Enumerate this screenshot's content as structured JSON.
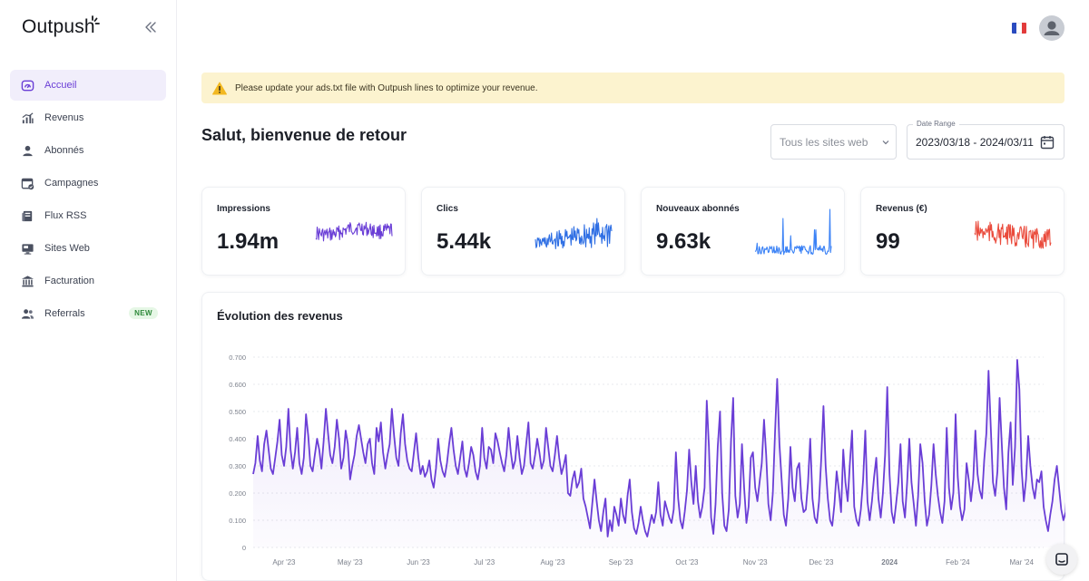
{
  "app": {
    "logo_text": "Outpush",
    "logo_icon": "spark-icon",
    "collapse_icon": "double-chevron-left-icon"
  },
  "sidebar": {
    "items": [
      {
        "label": "Accueil",
        "icon": "dashboard-gauge-icon",
        "active": true
      },
      {
        "label": "Revenus",
        "icon": "bar-chart-icon",
        "active": false
      },
      {
        "label": "Abonnés",
        "icon": "user-icon",
        "active": false
      },
      {
        "label": "Campagnes",
        "icon": "calendar-check-icon",
        "active": false
      },
      {
        "label": "Flux RSS",
        "icon": "rss-feed-icon",
        "active": false
      },
      {
        "label": "Sites Web",
        "icon": "monitor-icon",
        "active": false
      },
      {
        "label": "Facturation",
        "icon": "bank-icon",
        "active": false
      },
      {
        "label": "Referrals",
        "icon": "users-icon",
        "active": false,
        "badge": "NEW"
      }
    ]
  },
  "header": {
    "language_flag": "france-flag-icon",
    "avatar_icon": "avatar-icon"
  },
  "alert": {
    "icon": "warning-triangle-icon",
    "text": "Please update your ads.txt file with Outpush lines to optimize your revenue."
  },
  "greeting": "Salut, bienvenue de retour",
  "filters": {
    "site_select_value": "Tous les sites web",
    "date_range_label": "Date Range",
    "date_range_value": "2023/03/18 - 2024/03/11"
  },
  "colors": {
    "accent": "#6a3ed6",
    "impressions": "#6a3ed6",
    "clics": "#2f6fe4",
    "abonnes": "#3b82f6",
    "revenus": "#ea4b3c",
    "alert_bg": "#fcf3cf"
  },
  "stats": [
    {
      "label": "Impressions",
      "value": "1.94m",
      "color": "#6a3ed6"
    },
    {
      "label": "Clics",
      "value": "5.44k",
      "color": "#2f6fe4"
    },
    {
      "label": "Nouveaux abonnés",
      "value": "9.63k",
      "color": "#3b82f6"
    },
    {
      "label": "Revenus (€)",
      "value": "99",
      "color": "#ea4b3c"
    }
  ],
  "chart_data": {
    "type": "area",
    "title": "Évolution des revenus",
    "x_tick_labels": [
      "Apr '23",
      "May '23",
      "Jun '23",
      "Jul '23",
      "Aug '23",
      "Sep '23",
      "Oct '23",
      "Nov '23",
      "Dec '23",
      "2024",
      "Feb '24",
      "Mar '24"
    ],
    "y_tick_labels": [
      "0",
      "0.100",
      "0.200",
      "0.300",
      "0.400",
      "0.500",
      "0.600",
      "0.700"
    ],
    "ylim": [
      0,
      0.7
    ],
    "x_range": [
      "2023-03-18",
      "2024-03-11"
    ],
    "grid": true,
    "legend": "none",
    "series": [
      {
        "color": "#6a3ed6",
        "start": "2023-03-18",
        "step": "1 day",
        "values": [
          0.27,
          0.31,
          0.41,
          0.32,
          0.28,
          0.38,
          0.43,
          0.36,
          0.29,
          0.27,
          0.33,
          0.39,
          0.47,
          0.34,
          0.3,
          0.37,
          0.51,
          0.36,
          0.29,
          0.35,
          0.44,
          0.31,
          0.27,
          0.33,
          0.49,
          0.41,
          0.3,
          0.28,
          0.34,
          0.4,
          0.36,
          0.29,
          0.39,
          0.51,
          0.42,
          0.34,
          0.31,
          0.37,
          0.47,
          0.4,
          0.29,
          0.33,
          0.43,
          0.38,
          0.25,
          0.3,
          0.34,
          0.41,
          0.45,
          0.4,
          0.35,
          0.31,
          0.38,
          0.4,
          0.31,
          0.27,
          0.44,
          0.39,
          0.46,
          0.35,
          0.29,
          0.34,
          0.38,
          0.51,
          0.41,
          0.33,
          0.3,
          0.42,
          0.49,
          0.38,
          0.32,
          0.29,
          0.28,
          0.35,
          0.42,
          0.33,
          0.27,
          0.3,
          0.26,
          0.28,
          0.32,
          0.25,
          0.22,
          0.29,
          0.4,
          0.32,
          0.28,
          0.26,
          0.31,
          0.38,
          0.44,
          0.36,
          0.3,
          0.27,
          0.33,
          0.39,
          0.29,
          0.26,
          0.31,
          0.37,
          0.34,
          0.28,
          0.25,
          0.3,
          0.44,
          0.33,
          0.29,
          0.37,
          0.36,
          0.31,
          0.42,
          0.39,
          0.35,
          0.31,
          0.28,
          0.34,
          0.44,
          0.35,
          0.29,
          0.32,
          0.41,
          0.33,
          0.27,
          0.3,
          0.38,
          0.46,
          0.31,
          0.29,
          0.34,
          0.4,
          0.35,
          0.29,
          0.32,
          0.44,
          0.37,
          0.3,
          0.28,
          0.34,
          0.41,
          0.33,
          0.27,
          0.3,
          0.34,
          0.2,
          0.19,
          0.25,
          0.28,
          0.22,
          0.24,
          0.29,
          0.18,
          0.15,
          0.11,
          0.07,
          0.16,
          0.25,
          0.17,
          0.1,
          0.06,
          0.13,
          0.18,
          0.04,
          0.1,
          0.06,
          0.15,
          0.12,
          0.08,
          0.18,
          0.12,
          0.09,
          0.19,
          0.25,
          0.13,
          0.07,
          0.05,
          0.09,
          0.15,
          0.1,
          0.06,
          0.04,
          0.08,
          0.12,
          0.09,
          0.13,
          0.24,
          0.12,
          0.08,
          0.17,
          0.14,
          0.11,
          0.09,
          0.14,
          0.35,
          0.18,
          0.1,
          0.07,
          0.13,
          0.21,
          0.36,
          0.24,
          0.16,
          0.3,
          0.17,
          0.11,
          0.15,
          0.22,
          0.54,
          0.37,
          0.11,
          0.05,
          0.16,
          0.37,
          0.5,
          0.2,
          0.08,
          0.06,
          0.14,
          0.39,
          0.55,
          0.19,
          0.11,
          0.16,
          0.38,
          0.22,
          0.09,
          0.15,
          0.33,
          0.35,
          0.22,
          0.17,
          0.24,
          0.31,
          0.47,
          0.34,
          0.16,
          0.1,
          0.2,
          0.42,
          0.62,
          0.38,
          0.25,
          0.12,
          0.08,
          0.18,
          0.37,
          0.22,
          0.17,
          0.29,
          0.31,
          0.18,
          0.13,
          0.14,
          0.24,
          0.4,
          0.18,
          0.11,
          0.09,
          0.17,
          0.33,
          0.52,
          0.3,
          0.18,
          0.1,
          0.08,
          0.16,
          0.28,
          0.21,
          0.13,
          0.36,
          0.24,
          0.17,
          0.31,
          0.43,
          0.15,
          0.1,
          0.08,
          0.14,
          0.25,
          0.43,
          0.17,
          0.1,
          0.17,
          0.26,
          0.33,
          0.18,
          0.11,
          0.2,
          0.34,
          0.59,
          0.27,
          0.13,
          0.09,
          0.16,
          0.24,
          0.38,
          0.17,
          0.11,
          0.24,
          0.4,
          0.24,
          0.16,
          0.08,
          0.19,
          0.38,
          0.31,
          0.17,
          0.08,
          0.12,
          0.23,
          0.38,
          0.27,
          0.19,
          0.13,
          0.09,
          0.17,
          0.44,
          0.22,
          0.14,
          0.2,
          0.49,
          0.26,
          0.15,
          0.1,
          0.14,
          0.31,
          0.25,
          0.17,
          0.25,
          0.43,
          0.27,
          0.21,
          0.18,
          0.32,
          0.42,
          0.65,
          0.44,
          0.24,
          0.19,
          0.28,
          0.55,
          0.38,
          0.22,
          0.14,
          0.35,
          0.46,
          0.23,
          0.37,
          0.69,
          0.58,
          0.29,
          0.17,
          0.25,
          0.41,
          0.3,
          0.22,
          0.18,
          0.25,
          0.24,
          0.28,
          0.15,
          0.1,
          0.06,
          0.12,
          0.17,
          0.25,
          0.3,
          0.22,
          0.14,
          0.1,
          0.13,
          0.28,
          0.2,
          0.13,
          0.08,
          0.18,
          0.29,
          0.22,
          0.15,
          0.19,
          0.24,
          0.18,
          0.12,
          0.19,
          0.23,
          0.17,
          0.12,
          0.16,
          0.19,
          0.14,
          0.1,
          0.17,
          0.11,
          0.08,
          0.15,
          0.31,
          0.19,
          0.13,
          0.09,
          0.05,
          0.11,
          0.21,
          0.15,
          0.1,
          0.35,
          0.26,
          0.17,
          0.11,
          0.3,
          0.22,
          0.13,
          0.09,
          0.17,
          0.27,
          0.15,
          0.08,
          0.11,
          0.05,
          0.12,
          0.19,
          0.13,
          0.08,
          0.2,
          0.41,
          0.22,
          0.14,
          0.09,
          0.17,
          0.26,
          0.16,
          0.1,
          0.07,
          0.17,
          0.13,
          0.1,
          0.2,
          0.13,
          0.08,
          0.15,
          0.14,
          0.09,
          0.19,
          0.14,
          0.07,
          0.18,
          0.21,
          0.13,
          0.09,
          0.06,
          0.14,
          0.19,
          0.12,
          0.08,
          0.15,
          0.27
        ]
      }
    ]
  }
}
